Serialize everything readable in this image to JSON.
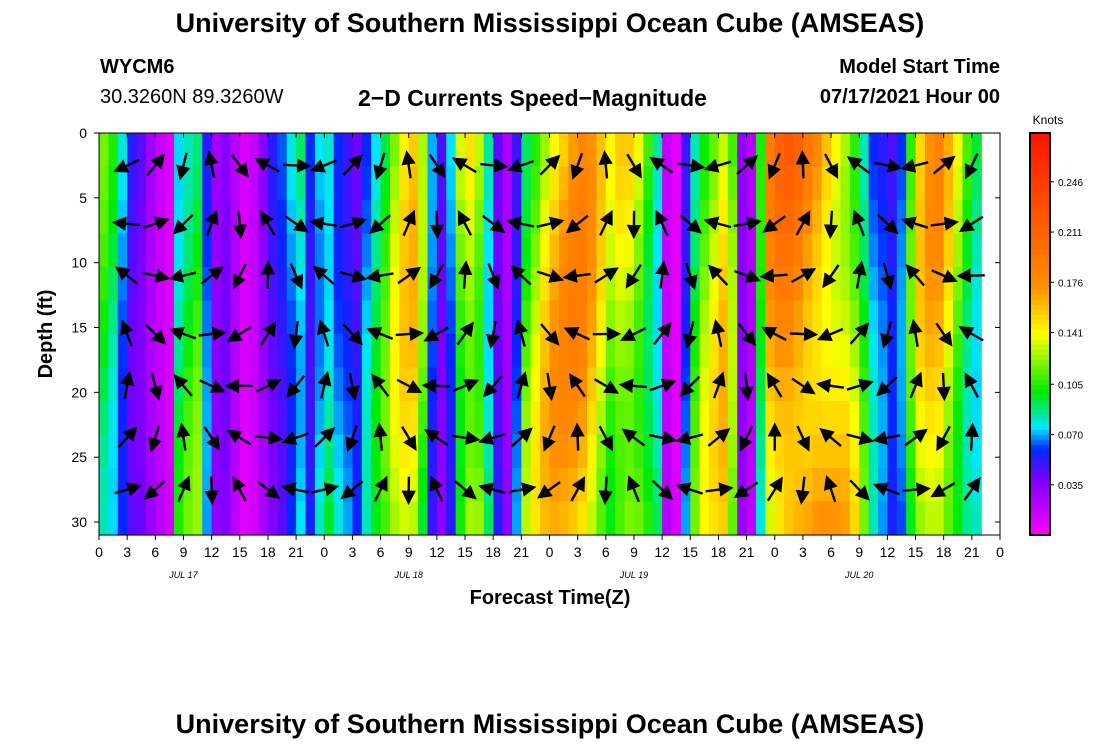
{
  "header": {
    "title_top": "University of Southern Mississippi Ocean Cube (AMSEAS)",
    "title_bottom": "University of Southern Mississippi Ocean Cube (AMSEAS)",
    "station": "WYCM6",
    "coords": "30.3260N  89.3260W",
    "plot_title": "2−D Currents Speed−Magnitude",
    "model_label": "Model Start Time",
    "model_time": "07/17/2021 Hour 00"
  },
  "chart_data": {
    "type": "heatmap",
    "title": "2−D Currents Speed−Magnitude",
    "xlabel": "Forecast Time(Z)",
    "ylabel": "Depth (ft)",
    "x_range_hours": [
      0,
      96
    ],
    "ylim": [
      0,
      31
    ],
    "y_ticks": [
      "0",
      "5",
      "10",
      "15",
      "20",
      "25",
      "30"
    ],
    "x_tick_labels": [
      "0",
      "3",
      "6",
      "9",
      "12",
      "15",
      "18",
      "21",
      "0",
      "3",
      "6",
      "9",
      "12",
      "15",
      "18",
      "21",
      "0",
      "3",
      "6",
      "9",
      "12",
      "15",
      "18",
      "21",
      "0",
      "3",
      "6",
      "9",
      "12",
      "15",
      "18",
      "21",
      "0"
    ],
    "day_labels": [
      "JUL 17",
      "JUL 18",
      "JUL 19",
      "JUL 20"
    ],
    "colorbar": {
      "unit": "Knots",
      "min": 0.0,
      "max": 0.28,
      "ticks": [
        "0.035",
        "0.070",
        "0.105",
        "0.141",
        "0.176",
        "0.211",
        "0.246"
      ]
    },
    "speed_profile_hours": [
      0,
      1,
      2,
      3,
      4,
      5,
      6,
      7,
      8,
      9,
      10,
      11,
      12,
      13,
      14,
      15,
      16,
      17,
      18,
      19,
      20,
      21,
      22,
      23,
      24,
      25,
      26,
      27,
      28,
      29,
      30,
      31,
      32,
      33,
      34,
      35,
      36,
      37,
      38,
      39,
      40,
      41,
      42,
      43,
      44,
      45,
      46,
      47,
      48,
      49,
      50,
      51,
      52,
      53,
      54,
      55,
      56,
      57,
      58,
      59,
      60,
      61,
      62,
      63,
      64,
      65,
      66,
      67,
      68,
      69,
      70,
      71,
      72,
      73,
      74,
      75,
      76,
      77,
      78,
      79,
      80,
      81,
      82,
      83,
      84,
      85,
      86,
      87,
      88,
      89,
      90,
      91,
      92,
      93,
      94,
      95,
      96
    ],
    "speed_profile_knots": [
      0.1,
      0.09,
      0.07,
      0.05,
      0.045,
      0.03,
      0.02,
      0.012,
      0.09,
      0.1,
      0.105,
      0.06,
      0.03,
      0.035,
      0.02,
      0.01,
      0.015,
      0.03,
      0.045,
      0.055,
      0.07,
      0.085,
      0.06,
      0.08,
      0.09,
      0.07,
      0.06,
      0.05,
      0.07,
      0.085,
      0.1,
      0.12,
      0.135,
      0.14,
      0.11,
      0.06,
      0.04,
      0.065,
      0.12,
      0.14,
      0.13,
      0.09,
      0.05,
      0.03,
      0.06,
      0.11,
      0.125,
      0.14,
      0.15,
      0.155,
      0.16,
      0.16,
      0.15,
      0.135,
      0.12,
      0.135,
      0.14,
      0.13,
      0.11,
      0.09,
      0.02,
      0.01,
      0.06,
      0.1,
      0.12,
      0.13,
      0.14,
      0.11,
      0.03,
      0.02,
      0.09,
      0.16,
      0.18,
      0.19,
      0.19,
      0.185,
      0.18,
      0.17,
      0.16,
      0.15,
      0.13,
      0.1,
      0.07,
      0.06,
      0.05,
      0.06,
      0.1,
      0.135,
      0.15,
      0.155,
      0.14,
      0.12,
      0.1,
      0.09,
      0.13
    ],
    "vector_rows_ft": [
      2.5,
      7,
      11,
      15.5,
      19.5,
      23.5,
      27.5
    ],
    "vector_step_hours": 3
  }
}
